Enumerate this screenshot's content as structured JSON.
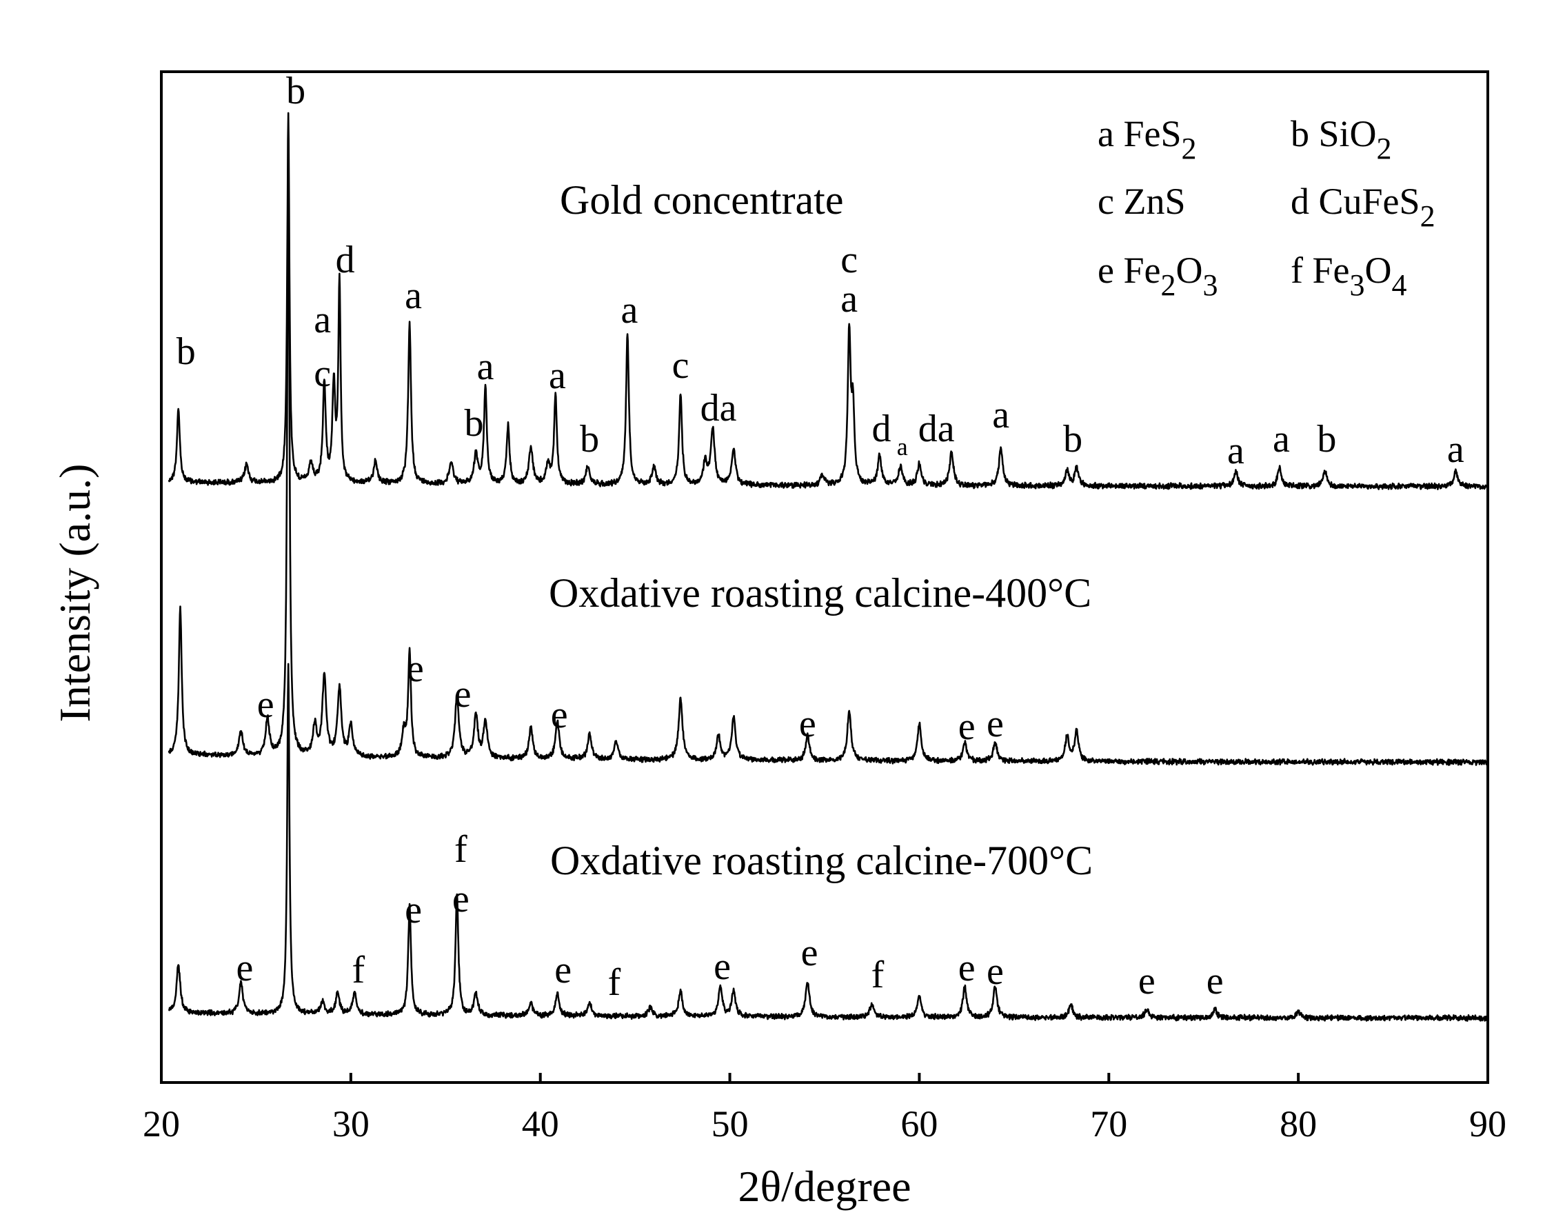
{
  "chart_data": {
    "type": "line",
    "title": "",
    "xlabel": "2θ/degree",
    "ylabel": "Intensity (a.u.)",
    "xlim": [
      20,
      90
    ],
    "x_ticks": [
      "20",
      "30",
      "40",
      "50",
      "60",
      "70",
      "80",
      "90"
    ],
    "grid": false,
    "legend": [
      {
        "key": "a",
        "label": "FeS",
        "sub": "2"
      },
      {
        "key": "b",
        "label": "SiO",
        "sub": "2"
      },
      {
        "key": "c",
        "label": "ZnS",
        "sub": ""
      },
      {
        "key": "d",
        "label": "CuFeS",
        "sub": "2"
      },
      {
        "key": "e",
        "label": "Fe",
        "sub": "2",
        "label2": "O",
        "sub2": "3"
      },
      {
        "key": "f",
        "label": "Fe",
        "sub": "3",
        "label2": "O",
        "sub2": "4"
      }
    ],
    "series": [
      {
        "name": "Gold concentrate",
        "peaks": [
          {
            "x": 20.9,
            "h": 0.2
          },
          {
            "x": 24.5,
            "h": 0.05
          },
          {
            "x": 26.7,
            "h": 1.0
          },
          {
            "x": 27.9,
            "h": 0.05
          },
          {
            "x": 28.6,
            "h": 0.27
          },
          {
            "x": 29.1,
            "h": 0.26
          },
          {
            "x": 29.4,
            "h": 0.55
          },
          {
            "x": 31.3,
            "h": 0.06
          },
          {
            "x": 33.1,
            "h": 0.43
          },
          {
            "x": 35.3,
            "h": 0.06
          },
          {
            "x": 36.6,
            "h": 0.08
          },
          {
            "x": 37.1,
            "h": 0.26
          },
          {
            "x": 38.3,
            "h": 0.16
          },
          {
            "x": 39.5,
            "h": 0.1
          },
          {
            "x": 40.4,
            "h": 0.05
          },
          {
            "x": 40.8,
            "h": 0.24
          },
          {
            "x": 42.5,
            "h": 0.05
          },
          {
            "x": 44.6,
            "h": 0.41
          },
          {
            "x": 46.0,
            "h": 0.05
          },
          {
            "x": 47.4,
            "h": 0.25
          },
          {
            "x": 48.7,
            "h": 0.06
          },
          {
            "x": 49.1,
            "h": 0.15
          },
          {
            "x": 50.2,
            "h": 0.1
          },
          {
            "x": 54.9,
            "h": 0.03
          },
          {
            "x": 56.3,
            "h": 0.41
          },
          {
            "x": 56.5,
            "h": 0.2
          },
          {
            "x": 57.9,
            "h": 0.08
          },
          {
            "x": 59.0,
            "h": 0.05
          },
          {
            "x": 60.0,
            "h": 0.06
          },
          {
            "x": 61.7,
            "h": 0.09
          },
          {
            "x": 64.3,
            "h": 0.1
          },
          {
            "x": 67.8,
            "h": 0.04
          },
          {
            "x": 68.3,
            "h": 0.05
          },
          {
            "x": 76.7,
            "h": 0.04
          },
          {
            "x": 79.0,
            "h": 0.05
          },
          {
            "x": 81.4,
            "h": 0.04
          },
          {
            "x": 88.3,
            "h": 0.04
          }
        ],
        "labels": [
          {
            "x": 21.3,
            "text": "b"
          },
          {
            "x": 27.1,
            "text": "b"
          },
          {
            "x": 28.5,
            "text": "c"
          },
          {
            "x": 28.5,
            "text": "a"
          },
          {
            "x": 29.7,
            "text": "d"
          },
          {
            "x": 33.3,
            "text": "a"
          },
          {
            "x": 37.1,
            "text": "a"
          },
          {
            "x": 36.5,
            "text": "b"
          },
          {
            "x": 40.9,
            "text": "a"
          },
          {
            "x": 42.6,
            "text": "b"
          },
          {
            "x": 44.7,
            "text": "a"
          },
          {
            "x": 47.4,
            "text": "c"
          },
          {
            "x": 49.4,
            "text": "da"
          },
          {
            "x": 56.3,
            "text": "a"
          },
          {
            "x": 56.3,
            "text": "c"
          },
          {
            "x": 58.0,
            "text": "d"
          },
          {
            "x": 59.1,
            "text": "a"
          },
          {
            "x": 60.9,
            "text": "da"
          },
          {
            "x": 64.3,
            "text": "a"
          },
          {
            "x": 68.1,
            "text": "b"
          },
          {
            "x": 76.7,
            "text": "a"
          },
          {
            "x": 79.1,
            "text": "a"
          },
          {
            "x": 81.5,
            "text": "b"
          },
          {
            "x": 88.3,
            "text": "a"
          }
        ]
      },
      {
        "name": "Oxdative roasting calcine-400°C",
        "peaks": [
          {
            "x": 21.0,
            "h": 0.24
          },
          {
            "x": 24.2,
            "h": 0.04
          },
          {
            "x": 25.6,
            "h": 0.06
          },
          {
            "x": 26.7,
            "h": 1.0
          },
          {
            "x": 28.1,
            "h": 0.05
          },
          {
            "x": 28.6,
            "h": 0.13
          },
          {
            "x": 29.4,
            "h": 0.11
          },
          {
            "x": 30.0,
            "h": 0.05
          },
          {
            "x": 32.8,
            "h": 0.04
          },
          {
            "x": 33.1,
            "h": 0.17
          },
          {
            "x": 35.6,
            "h": 0.1
          },
          {
            "x": 36.6,
            "h": 0.07
          },
          {
            "x": 37.1,
            "h": 0.06
          },
          {
            "x": 39.5,
            "h": 0.05
          },
          {
            "x": 40.9,
            "h": 0.06
          },
          {
            "x": 42.6,
            "h": 0.04
          },
          {
            "x": 44.0,
            "h": 0.03
          },
          {
            "x": 47.4,
            "h": 0.1
          },
          {
            "x": 49.4,
            "h": 0.04
          },
          {
            "x": 50.2,
            "h": 0.07
          },
          {
            "x": 54.1,
            "h": 0.04
          },
          {
            "x": 56.3,
            "h": 0.08
          },
          {
            "x": 60.0,
            "h": 0.06
          },
          {
            "x": 62.4,
            "h": 0.03
          },
          {
            "x": 64.0,
            "h": 0.03
          },
          {
            "x": 67.8,
            "h": 0.04
          },
          {
            "x": 68.3,
            "h": 0.05
          }
        ],
        "labels": [
          {
            "x": 25.5,
            "text": "e"
          },
          {
            "x": 33.4,
            "text": "e"
          },
          {
            "x": 35.9,
            "text": "e"
          },
          {
            "x": 41.0,
            "text": "e"
          },
          {
            "x": 54.1,
            "text": "e"
          },
          {
            "x": 62.5,
            "text": "e"
          },
          {
            "x": 64.0,
            "text": "e"
          }
        ]
      },
      {
        "name": "Oxdative roasting calcine-700°C",
        "peaks": [
          {
            "x": 20.9,
            "h": 0.11
          },
          {
            "x": 24.2,
            "h": 0.07
          },
          {
            "x": 26.7,
            "h": 0.8
          },
          {
            "x": 28.5,
            "h": 0.03
          },
          {
            "x": 29.3,
            "h": 0.05
          },
          {
            "x": 30.2,
            "h": 0.05
          },
          {
            "x": 33.1,
            "h": 0.25
          },
          {
            "x": 35.6,
            "h": 0.28
          },
          {
            "x": 36.6,
            "h": 0.05
          },
          {
            "x": 39.5,
            "h": 0.03
          },
          {
            "x": 40.9,
            "h": 0.05
          },
          {
            "x": 42.6,
            "h": 0.03
          },
          {
            "x": 45.8,
            "h": 0.02
          },
          {
            "x": 47.4,
            "h": 0.06
          },
          {
            "x": 49.5,
            "h": 0.07
          },
          {
            "x": 50.2,
            "h": 0.06
          },
          {
            "x": 54.1,
            "h": 0.08
          },
          {
            "x": 57.5,
            "h": 0.03
          },
          {
            "x": 60.0,
            "h": 0.05
          },
          {
            "x": 62.4,
            "h": 0.07
          },
          {
            "x": 64.0,
            "h": 0.07
          },
          {
            "x": 68.0,
            "h": 0.03
          },
          {
            "x": 72.0,
            "h": 0.02
          },
          {
            "x": 75.6,
            "h": 0.02
          },
          {
            "x": 80.0,
            "h": 0.015
          }
        ],
        "labels": [
          {
            "x": 24.4,
            "text": "e"
          },
          {
            "x": 30.4,
            "text": "f"
          },
          {
            "x": 33.3,
            "text": "e"
          },
          {
            "x": 35.8,
            "text": "e"
          },
          {
            "x": 35.8,
            "text": "f"
          },
          {
            "x": 41.2,
            "text": "e"
          },
          {
            "x": 43.9,
            "text": "f"
          },
          {
            "x": 49.6,
            "text": "e"
          },
          {
            "x": 54.2,
            "text": "e"
          },
          {
            "x": 57.8,
            "text": "f"
          },
          {
            "x": 62.5,
            "text": "e"
          },
          {
            "x": 64.0,
            "text": "e"
          },
          {
            "x": 72.0,
            "text": "e"
          },
          {
            "x": 75.6,
            "text": "e"
          }
        ]
      }
    ]
  }
}
